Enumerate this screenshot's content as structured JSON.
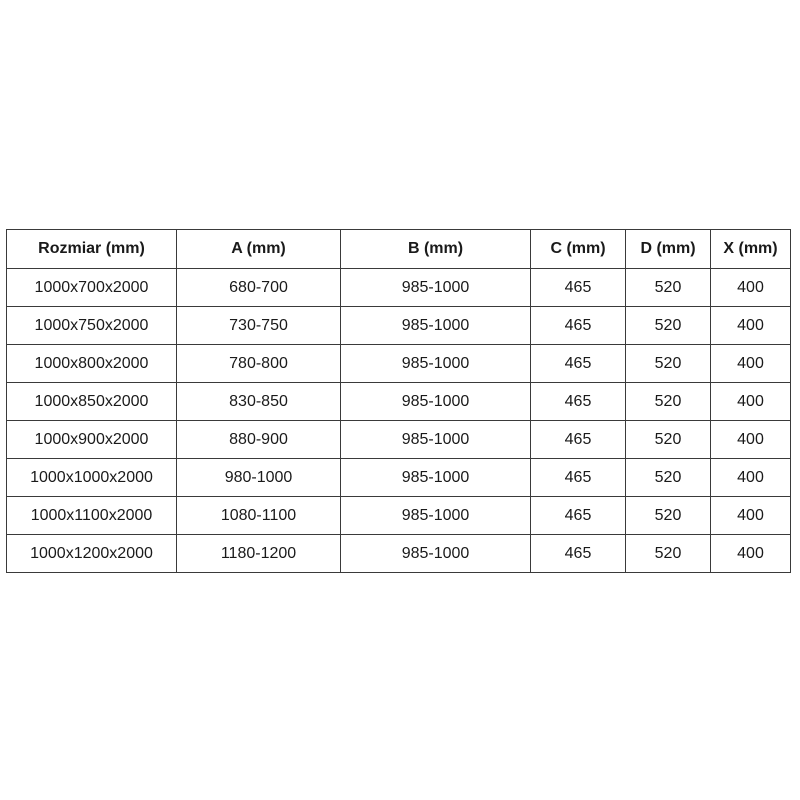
{
  "table": {
    "background": "#ffffff",
    "border_color": "#3a3a3a",
    "text_color": "#1a1a1a",
    "headers": {
      "rozmiar": "Rozmiar (mm)",
      "a": "A (mm)",
      "b": "B (mm)",
      "c": "C (mm)",
      "d": "D (mm)",
      "x": "X (mm)"
    },
    "rows": [
      [
        "1000x700x2000",
        "680-700",
        "985-1000",
        "465",
        "520",
        "400"
      ],
      [
        "1000x750x2000",
        "730-750",
        "985-1000",
        "465",
        "520",
        "400"
      ],
      [
        "1000x800x2000",
        "780-800",
        "985-1000",
        "465",
        "520",
        "400"
      ],
      [
        "1000x850x2000",
        "830-850",
        "985-1000",
        "465",
        "520",
        "400"
      ],
      [
        "1000x900x2000",
        "880-900",
        "985-1000",
        "465",
        "520",
        "400"
      ],
      [
        "1000x1000x2000",
        "980-1000",
        "985-1000",
        "465",
        "520",
        "400"
      ],
      [
        "1000x1100x2000",
        "1080-1100",
        "985-1000",
        "465",
        "520",
        "400"
      ],
      [
        "1000x1200x2000",
        "1180-1200",
        "985-1000",
        "465",
        "520",
        "400"
      ]
    ]
  }
}
